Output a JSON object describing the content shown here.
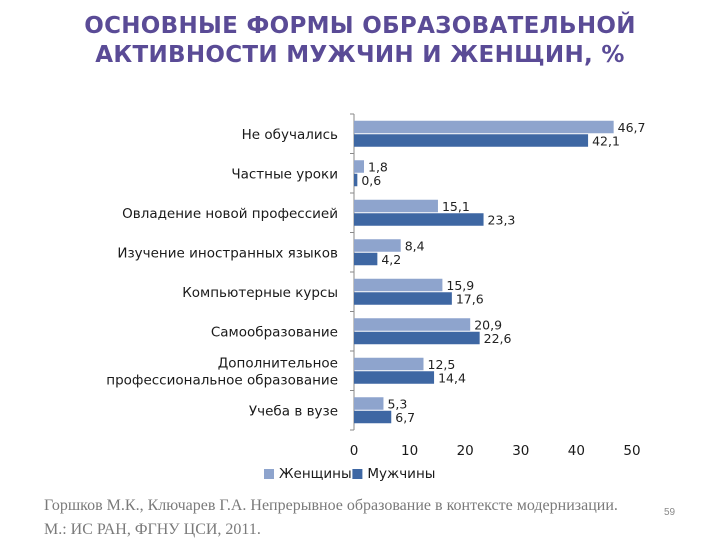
{
  "title_line1": "ОСНОВНЫЕ ФОРМЫ ОБРАЗОВАТЕЛЬНОЙ",
  "title_line2": "АКТИВНОСТИ МУЖЧИН И ЖЕНЩИН, %",
  "chart_data": {
    "type": "bar",
    "orientation": "horizontal",
    "categories": [
      "Не обучались",
      "Частные уроки",
      "Овладение новой профессией",
      "Изучение иностранных языков",
      "Компьютерные курсы",
      "Самообразование",
      "Дополнительное профессиональное образование",
      "Учеба в вузе"
    ],
    "category_lines": [
      [
        "Не обучались"
      ],
      [
        "Частные уроки"
      ],
      [
        "Овладение новой профессией"
      ],
      [
        "Изучение иностранных языков"
      ],
      [
        "Компьютерные курсы"
      ],
      [
        "Самообразование"
      ],
      [
        "Дополнительное",
        "профессиональное образование"
      ],
      [
        "Учеба в вузе"
      ]
    ],
    "series": [
      {
        "name": "Женщины",
        "color": "#8ea4cd",
        "values": [
          46.7,
          1.8,
          15.1,
          8.4,
          15.9,
          20.9,
          12.5,
          5.3
        ]
      },
      {
        "name": "Мужчины",
        "color": "#3e67a3",
        "values": [
          42.1,
          0.6,
          23.3,
          4.2,
          17.6,
          22.6,
          14.4,
          6.7
        ]
      }
    ],
    "value_labels": [
      [
        "46,7",
        "1,8",
        "15,1",
        "8,4",
        "15,9",
        "20,9",
        "12,5",
        "5,3"
      ],
      [
        "42,1",
        "0,6",
        "23,3",
        "4,2",
        "17,6",
        "22,6",
        "14,4",
        "6,7"
      ]
    ],
    "xlim": [
      0,
      50
    ],
    "xticks": [
      "0",
      "10",
      "20",
      "30",
      "40",
      "50"
    ],
    "legend_position": "bottom",
    "grid": false
  },
  "source_line1": "Горшков М.К., Ключарев Г.А. Непрерывное образование в контексте модернизации.",
  "source_line2": "М.: ИС РАН, ФГНУ ЦСИ, 2011.",
  "page_number": "59"
}
